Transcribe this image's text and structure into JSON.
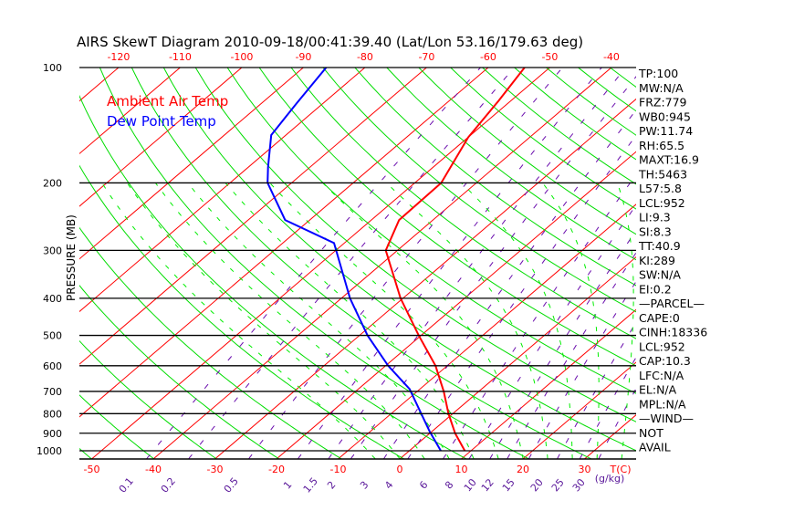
{
  "title": "AIRS SkewT Diagram 2010-09-18/00:41:39.40 (Lat/Lon 53.16/179.63 deg)",
  "legend": {
    "ambient": "Ambient Air Temp",
    "dewpoint": "Dew Point Temp"
  },
  "colors": {
    "isotherm": "#ff0000",
    "dry_adiabat": "#00dd00",
    "moist_adiabat": "#00ee00",
    "mixing_ratio": "#6a0dad",
    "temperature": "#ff0000",
    "dewpoint": "#0000ff",
    "axis": "#000000"
  },
  "stats": [
    "TP:100",
    "MW:N/A",
    "FRZ:779",
    "WB0:945",
    "PW:11.74",
    "RH:65.5",
    "MAXT:16.9",
    "TH:5463",
    "L57:5.8",
    "LCL:952",
    "LI:9.3",
    "SI:8.3",
    "TT:40.9",
    "KI:289",
    "SW:N/A",
    "EI:0.2",
    "—PARCEL—",
    "CAPE:0",
    "CINH:18336",
    "LCL:952",
    "CAP:10.3",
    "LFC:N/A",
    "EL:N/A",
    "MPL:N/A",
    "—WIND—",
    "NOT",
    "AVAIL"
  ],
  "chart_data": {
    "type": "line",
    "subtype": "skew-T log-p",
    "title": "AIRS SkewT Diagram 2010-09-18/00:41:39.40 (Lat/Lon 53.16/179.63 deg)",
    "ylabel": "PRESSURE (MB)",
    "xlabel": "T(C)",
    "mixing_ratio_unit": "(g/kg)",
    "ylim": [
      1050,
      100
    ],
    "pressure_ticks": [
      100,
      200,
      300,
      400,
      500,
      600,
      700,
      800,
      900,
      1000
    ],
    "top_temp_ticks": [
      -120,
      -110,
      -100,
      -90,
      -80,
      -70,
      -60,
      -50,
      -40
    ],
    "bottom_temp_ticks": [
      -50,
      -40,
      -30,
      -20,
      -10,
      0,
      10,
      20,
      30
    ],
    "mixing_ratio_labels": [
      "0.1",
      "0.2",
      "0.5",
      "1",
      "1.5",
      "2",
      "3",
      "4",
      "6",
      "8",
      "10",
      "12",
      "15",
      "20",
      "25",
      "30"
    ],
    "series": [
      {
        "name": "Ambient Air Temp",
        "pressure": [
          100,
          122,
          152,
          200,
          250,
          300,
          400,
          500,
          600,
          700,
          800,
          900,
          1000
        ],
        "temperature": [
          -54.1,
          -52.0,
          -50.0,
          -45.7,
          -45.5,
          -41.9,
          -30.4,
          -20.4,
          -11.9,
          -5.7,
          -0.7,
          4.1,
          9.0
        ]
      },
      {
        "name": "Dew Point Temp",
        "pressure": [
          100,
          124,
          150,
          182,
          200,
          250,
          287,
          400,
          500,
          600,
          690,
          890,
          1000
        ],
        "temperature": [
          -86.3,
          -84.3,
          -82.4,
          -76.8,
          -73.9,
          -64.0,
          -51.7,
          -38.6,
          -28.7,
          -19.6,
          -11.7,
          -0.4,
          5.1
        ]
      }
    ]
  }
}
